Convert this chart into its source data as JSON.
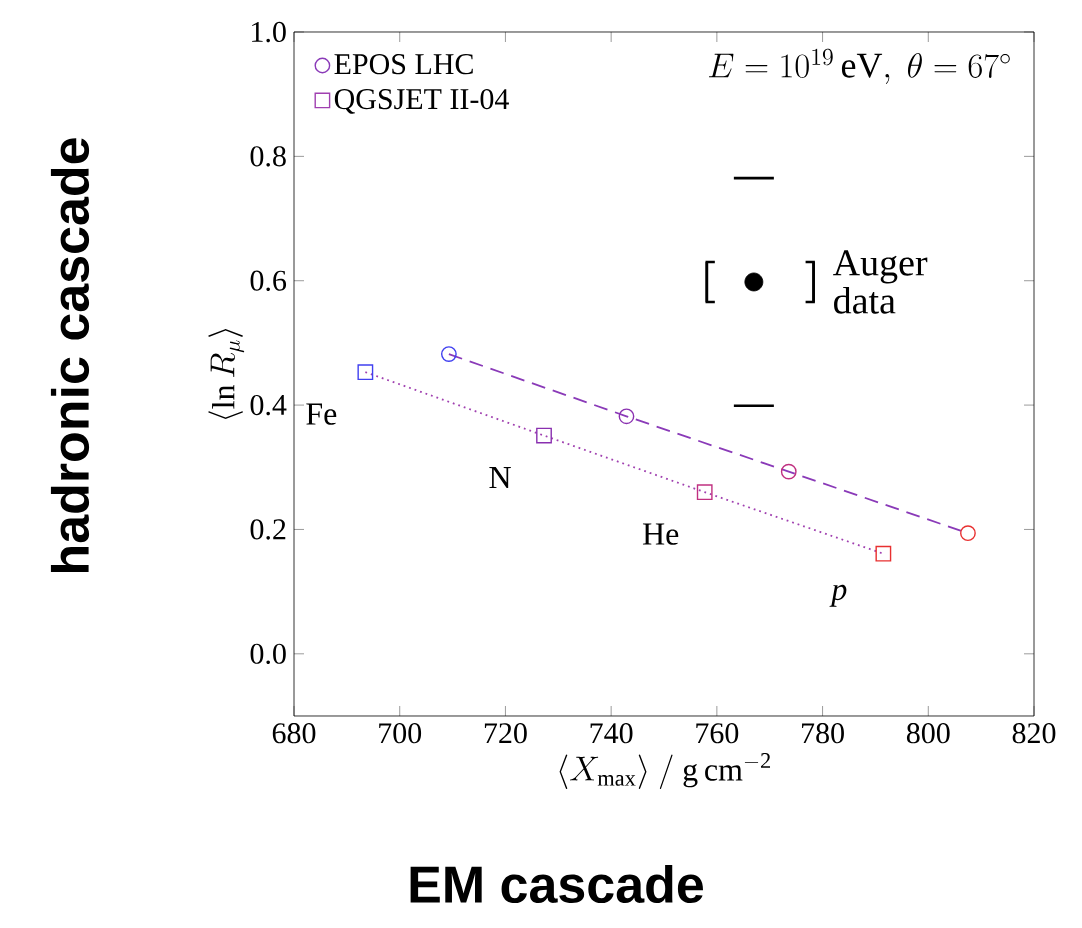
{
  "chart_data": {
    "type": "line",
    "xlabel": "\\langle X_\\mathrm{max} \\rangle\\ /\\ \\mathrm{g\\,cm^{-2}}",
    "ylabel": "\\langle \\ln R_\\mu \\rangle",
    "xlim": [
      680,
      820
    ],
    "ylim": [
      -0.1,
      1.0
    ],
    "xticks": [
      680,
      700,
      720,
      740,
      760,
      780,
      800,
      820
    ],
    "yticks": [
      {
        "value": 0.0,
        "label": "0.0"
      },
      0.2,
      0.4,
      0.6,
      0.8,
      {
        "value": 1.0,
        "label": "1.0"
      }
    ],
    "grid": false,
    "legend": "top left",
    "series": [
      {
        "name": "EPOS LHC",
        "color": "#8a3ab8",
        "colors": [
          "#4040f0",
          "#8a30b0",
          "#c03080",
          "#e83030"
        ],
        "marker": "circle",
        "line_style": "dashed",
        "x": [
          709.3,
          742.9,
          773.6,
          807.5
        ],
        "values": [
          0.482,
          0.382,
          0.293,
          0.194
        ]
      },
      {
        "name": "QGSJET II-04",
        "color": "#a040b0",
        "colors": [
          "#4040f0",
          "#8a30b0",
          "#c03080",
          "#e83030"
        ],
        "marker": "square",
        "line_style": "dotted",
        "x": [
          693.5,
          727.3,
          757.7,
          791.5
        ],
        "values": [
          0.453,
          0.351,
          0.26,
          0.161
        ]
      },
      {
        "name": "Auger data",
        "type": "scatter",
        "color": "#000000",
        "marker": "circle",
        "x": [
          767.0
        ],
        "values": [
          0.598
        ],
        "errors": [
          [
            0.399,
            0.765
          ]
        ],
        "xerrors": [
          [
            758.1,
            778.3
          ]
        ]
      }
    ],
    "annotations": [
      "E = 10^{19}\\,\\mathrm{eV},\\ \\theta = 67^\\circ",
      "hadronic cascade",
      "EM cascade",
      "Fe",
      "N",
      "He",
      "*p*"
    ]
  }
}
